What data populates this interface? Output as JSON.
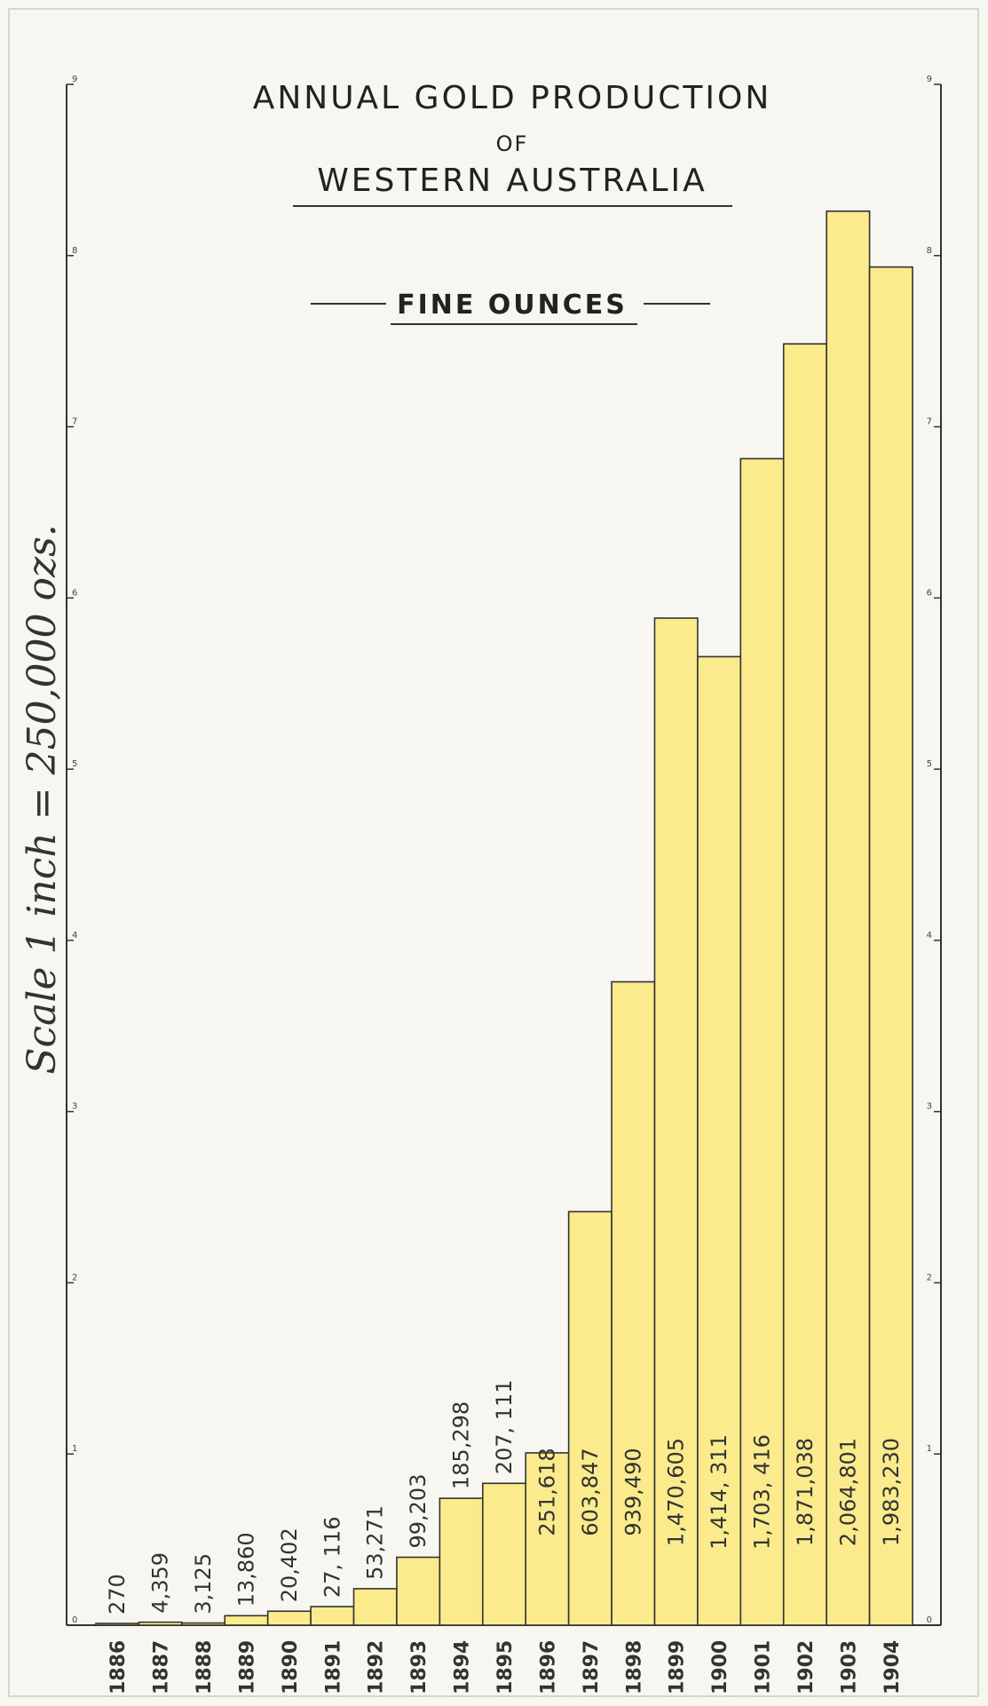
{
  "chart_data": {
    "type": "bar",
    "title": "ANNUAL GOLD PRODUCTION",
    "title_line2": "OF",
    "title_line3": "WESTERN AUSTRALIA",
    "unit_label": "FINE OUNCES",
    "ylabel": "Scale 1 inch = 250,000 ozs.",
    "ylim": [
      0,
      2250000
    ],
    "y_ticks": [
      0,
      1,
      2,
      3,
      4,
      5,
      6,
      7,
      8,
      9
    ],
    "y_tick_labels": [
      "0",
      "1",
      "2",
      "3",
      "4",
      "5",
      "6",
      "7",
      "8",
      "9"
    ],
    "y_tick_unit": 250000,
    "bar_color": "#fbeb8c",
    "categories": [
      "1886",
      "1887",
      "1888",
      "1889",
      "1890",
      "1891",
      "1892",
      "1893",
      "1894",
      "1895",
      "1896",
      "1897",
      "1898",
      "1899",
      "1900",
      "1901",
      "1902",
      "1903",
      "1904"
    ],
    "values": [
      270,
      4359,
      3125,
      13860,
      20402,
      27116,
      53271,
      99203,
      185298,
      207111,
      251618,
      603847,
      939490,
      1470605,
      1414311,
      1703416,
      1871038,
      2064801,
      1983230
    ],
    "value_labels": [
      "270",
      "4,359",
      "3,125",
      "13,860",
      "20,402",
      "27, 116",
      "53,271",
      "99,203",
      "185,298",
      "207, 111",
      "251,618",
      "603,847",
      "939,490",
      "1,470,605",
      "1,414, 311",
      "1,703, 416",
      "1,871,038",
      "2,064,801",
      "1,983,230"
    ]
  }
}
